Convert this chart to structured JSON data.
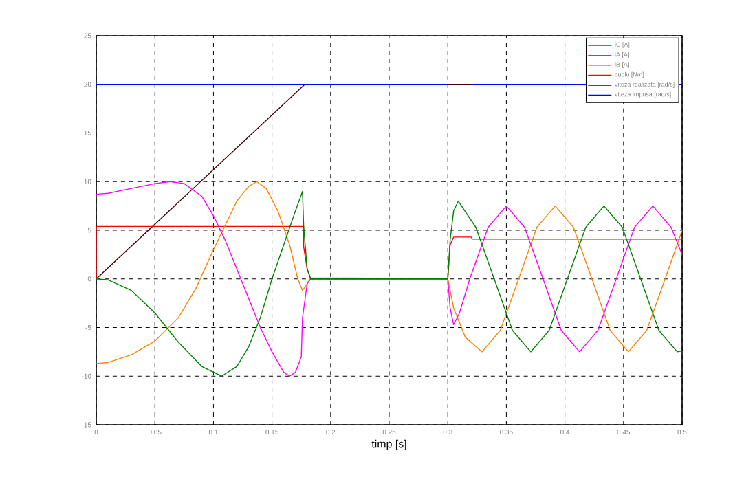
{
  "chart_data": {
    "type": "line",
    "xlabel": "timp [s]",
    "xlim": [
      0,
      0.5
    ],
    "ylim": [
      -15,
      25
    ],
    "xticks": [
      0,
      0.05,
      0.1,
      0.15,
      0.2,
      0.25,
      0.3,
      0.35,
      0.4,
      0.45,
      0.5
    ],
    "yticks": [
      -15,
      -10,
      -5,
      0,
      5,
      10,
      15,
      20,
      25
    ],
    "grid": true,
    "legend": "top right",
    "series": [
      {
        "name": "iC [A]",
        "color": "#008000",
        "x": [
          0,
          0.01,
          0.03,
          0.05,
          0.07,
          0.09,
          0.107,
          0.12,
          0.13,
          0.14,
          0.15,
          0.16,
          0.17,
          0.176,
          0.177,
          0.18,
          0.183,
          0.3,
          0.302,
          0.305,
          0.309,
          0.324,
          0.3396,
          0.3552,
          0.3708,
          0.3865,
          0.4021,
          0.4177,
          0.4333,
          0.449,
          0.4646,
          0.4802,
          0.4958,
          0.5
        ],
        "values": [
          0,
          -0.1,
          -1.2,
          -3.5,
          -6.5,
          -9,
          -10,
          -9,
          -7,
          -4,
          0,
          3.5,
          7,
          9,
          5.4,
          1,
          0,
          0,
          4,
          7,
          8,
          5.3,
          0,
          -5.3,
          -7.5,
          -5.3,
          0,
          5.3,
          7.5,
          5.3,
          0,
          -5.3,
          -7.5,
          -7.4
        ]
      },
      {
        "name": "iA [A]",
        "color": "#ff00ff",
        "x": [
          0,
          0.01,
          0.03,
          0.05,
          0.063,
          0.075,
          0.09,
          0.1,
          0.11,
          0.12,
          0.13,
          0.14,
          0.15,
          0.16,
          0.165,
          0.17,
          0.175,
          0.176,
          0.18,
          0.183,
          0.3,
          0.302,
          0.305,
          0.31,
          0.3188,
          0.3344,
          0.35,
          0.3656,
          0.3813,
          0.3969,
          0.4125,
          0.4281,
          0.4438,
          0.4594,
          0.475,
          0.4906,
          0.5
        ],
        "values": [
          8.7,
          8.8,
          9.3,
          9.8,
          10,
          9.8,
          8.5,
          6.5,
          4,
          1,
          -2,
          -5,
          -7.5,
          -9.6,
          -10,
          -9.6,
          -8,
          -4,
          -0.5,
          0,
          0,
          -3,
          -4.7,
          -3.5,
          0,
          5.3,
          7.5,
          5.3,
          0,
          -5.3,
          -7.5,
          -5.3,
          0,
          5.3,
          7.5,
          5.3,
          2.5
        ]
      },
      {
        "name": "iB [A]",
        "color": "#ff8000",
        "x": [
          0,
          0.01,
          0.03,
          0.05,
          0.07,
          0.085,
          0.1,
          0.11,
          0.12,
          0.13,
          0.137,
          0.145,
          0.155,
          0.165,
          0.172,
          0.176,
          0.18,
          0.183,
          0.21,
          0.3,
          0.305,
          0.315,
          0.3292,
          0.3448,
          0.3605,
          0.376,
          0.3917,
          0.4073,
          0.423,
          0.4386,
          0.4542,
          0.4698,
          0.4855,
          0.5
        ],
        "values": [
          -8.7,
          -8.6,
          -7.8,
          -6.4,
          -4,
          -1,
          3,
          5.5,
          8,
          9.5,
          10,
          9.3,
          7,
          3.5,
          0,
          -1.2,
          -0.5,
          0.1,
          0.1,
          0,
          -3,
          -6,
          -7.5,
          -5.3,
          0,
          5.3,
          7.5,
          5.3,
          0,
          -5.3,
          -7.5,
          -5.3,
          0,
          5
        ]
      },
      {
        "name": "cuplu [Nm]",
        "color": "#ff0000",
        "x": [
          0,
          0,
          0.177,
          0.177,
          0.18,
          0.183,
          0.3,
          0.302,
          0.305,
          0.32,
          0.321,
          0.5
        ],
        "values": [
          0,
          5.4,
          5.4,
          3.3,
          1,
          0,
          0,
          3.5,
          4.3,
          4.3,
          4.1,
          4.1
        ]
      },
      {
        "name": "viteza realizata [rad/s]",
        "color": "#400000",
        "x": [
          0,
          0.178,
          0.179,
          0.3,
          0.32
        ],
        "values": [
          0,
          20,
          null,
          20,
          20
        ]
      },
      {
        "name": "viteza impusa [rad/s]",
        "color": "#0000ff",
        "x": [
          0,
          0.5
        ],
        "values": [
          20,
          20
        ]
      }
    ]
  }
}
